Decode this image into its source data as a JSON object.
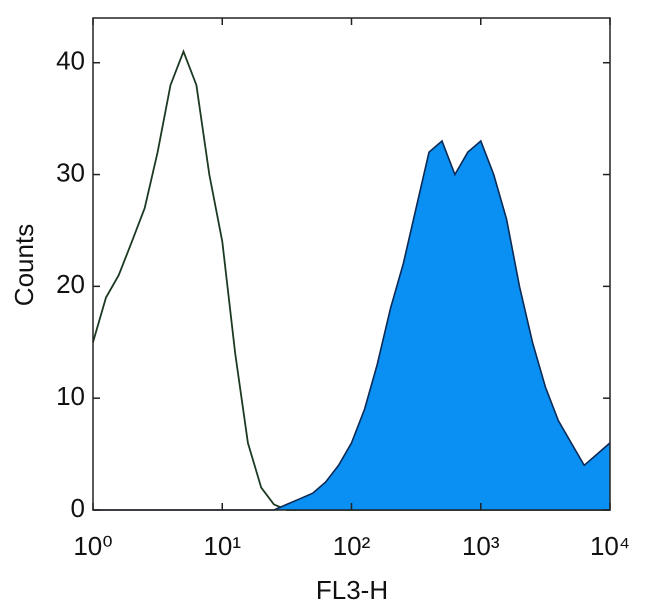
{
  "chart_data": {
    "type": "line",
    "x_label": "FL3-H",
    "y_label": "Counts",
    "xscale": "log",
    "xlim": [
      1,
      10000
    ],
    "xticks": [
      {
        "value": 1,
        "label": "10⁰"
      },
      {
        "value": 10,
        "label": "10¹"
      },
      {
        "value": 100,
        "label": "10²"
      },
      {
        "value": 1000,
        "label": "10³"
      },
      {
        "value": 10000,
        "label": "10⁴"
      }
    ],
    "ylim": [
      0,
      44
    ],
    "yticks": [
      0,
      10,
      20,
      30,
      40
    ],
    "x": [
      1,
      1.26,
      1.58,
      2,
      2.51,
      3.16,
      3.98,
      5.01,
      6.31,
      7.94,
      10,
      12.6,
      15.8,
      20,
      25.1,
      31.6,
      39.8,
      50.1,
      63.1,
      79.4,
      100,
      126,
      158,
      200,
      251,
      316,
      398,
      501,
      631,
      794,
      1000,
      1259,
      1585,
      1995,
      2512,
      3162,
      3981,
      5012,
      6310,
      7943,
      10000
    ],
    "series": [
      {
        "color": "#1c3a22",
        "filled": false,
        "values": [
          15,
          19,
          21,
          24,
          27,
          32,
          38,
          41,
          38,
          30,
          24,
          14,
          6,
          2,
          0.5,
          0,
          0,
          0,
          0,
          0,
          0,
          0,
          0,
          0,
          0,
          0,
          0,
          0,
          0,
          0,
          0,
          0,
          0,
          0,
          0,
          0,
          0,
          0,
          0,
          0,
          0
        ]
      },
      {
        "color": "#0a8ff2",
        "filled": true,
        "values": [
          0,
          0,
          0,
          0,
          0,
          0,
          0,
          0,
          0,
          0,
          0,
          0,
          0,
          0,
          0,
          0.5,
          1,
          1.5,
          2.5,
          4,
          6,
          9,
          13,
          18,
          22,
          27,
          32,
          33,
          30,
          32,
          33,
          30,
          26,
          20,
          15,
          11,
          8,
          6,
          4,
          5,
          6
        ]
      }
    ]
  }
}
